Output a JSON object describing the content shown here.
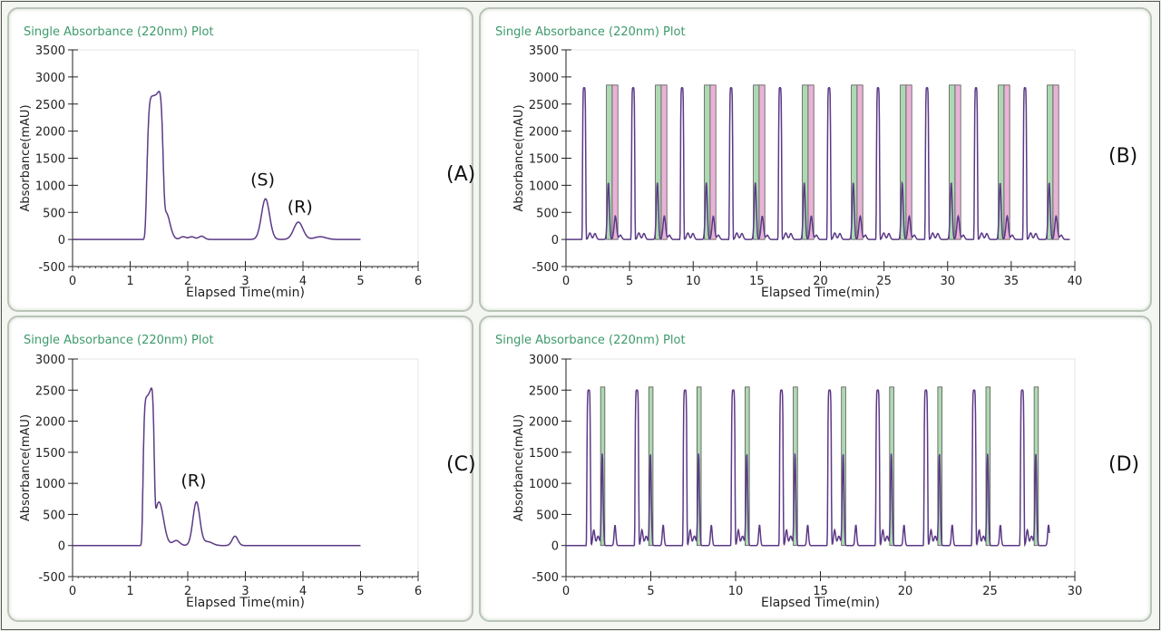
{
  "chart_data": [
    {
      "id": "A",
      "type": "line",
      "title": "Single Absorbance (220nm) Plot",
      "xlabel": "Elapsed Time(min)",
      "ylabel": "Absorbance(mAU)",
      "panel_label": "(A)",
      "xlim": [
        0,
        6
      ],
      "ylim": [
        -500,
        3500
      ],
      "xticks": [
        0,
        1,
        2,
        3,
        4,
        5,
        6
      ],
      "yticks": [
        -500,
        0,
        500,
        1000,
        1500,
        2000,
        2500,
        3000,
        3500
      ],
      "x_range": [
        0,
        5
      ],
      "peaks": [
        {
          "t": 1.43,
          "h": 2650,
          "w": 0.13,
          "flat": true
        },
        {
          "t": 1.62,
          "h": 500,
          "w": 0.07
        },
        {
          "t": 1.92,
          "h": 50,
          "w": 0.05
        },
        {
          "t": 2.07,
          "h": 50,
          "w": 0.05
        },
        {
          "t": 2.24,
          "h": 60,
          "w": 0.05
        },
        {
          "t": 3.35,
          "h": 750,
          "w": 0.07
        },
        {
          "t": 3.92,
          "h": 320,
          "w": 0.08
        },
        {
          "t": 4.3,
          "h": 50,
          "w": 0.1
        }
      ],
      "annotations": [
        {
          "text": "(S)",
          "x": 3.3,
          "y": 1000
        },
        {
          "text": "(R)",
          "x": 3.95,
          "y": 500
        }
      ],
      "fractions": []
    },
    {
      "id": "B",
      "type": "line",
      "title": "Single Absorbance (220nm) Plot",
      "xlabel": "Elapsed Time(min)",
      "ylabel": "Absorbance(mAU)",
      "panel_label": "(B)",
      "xlim": [
        0,
        40
      ],
      "ylim": [
        -500,
        3500
      ],
      "xticks": [
        0,
        5,
        10,
        15,
        20,
        25,
        30,
        35,
        40
      ],
      "yticks": [
        -500,
        0,
        500,
        1000,
        1500,
        2000,
        2500,
        3000,
        3500
      ],
      "x_range": [
        0,
        39.6
      ],
      "cycle_start": 1.43,
      "cycle_period": 3.85,
      "cycles": 10,
      "cycle_peaks": [
        {
          "dt": 0,
          "h": 2800,
          "w": 0.12,
          "flat": true
        },
        {
          "dt": 0.45,
          "h": 120,
          "w": 0.1
        },
        {
          "dt": 0.85,
          "h": 110,
          "w": 0.1
        },
        {
          "dt": 1.9,
          "h": 1050,
          "w": 0.08
        },
        {
          "dt": 2.45,
          "h": 430,
          "w": 0.1
        },
        {
          "dt": 2.85,
          "h": 80,
          "w": 0.1
        }
      ],
      "cycle_fractions": [
        {
          "start": 1.75,
          "end": 2.2,
          "color": "#9fd2a5"
        },
        {
          "start": 2.2,
          "end": 2.65,
          "color": "#e4a6cf"
        }
      ],
      "frac_top": 2850
    },
    {
      "id": "C",
      "type": "line",
      "title": "Single Absorbance (220nm) Plot",
      "xlabel": "Elapsed Time(min)",
      "ylabel": "Absorbance(mAU)",
      "panel_label": "(C)",
      "xlim": [
        0,
        6
      ],
      "ylim": [
        -500,
        3000
      ],
      "xticks": [
        0,
        1,
        2,
        3,
        4,
        5,
        6
      ],
      "yticks": [
        -500,
        0,
        500,
        1000,
        1500,
        2000,
        2500,
        3000
      ],
      "x_range": [
        0,
        5
      ],
      "peaks": [
        {
          "t": 1.32,
          "h": 2380,
          "w": 0.09,
          "flat": true
        },
        {
          "t": 1.5,
          "h": 700,
          "w": 0.08
        },
        {
          "t": 1.8,
          "h": 80,
          "w": 0.06
        },
        {
          "t": 2.15,
          "h": 700,
          "w": 0.06
        },
        {
          "t": 2.35,
          "h": 60,
          "w": 0.08
        },
        {
          "t": 2.82,
          "h": 150,
          "w": 0.05
        }
      ],
      "annotations": [
        {
          "text": "(R)",
          "x": 2.1,
          "y": 950
        }
      ],
      "fractions": []
    },
    {
      "id": "D",
      "type": "line",
      "title": "Single Absorbance (220nm) Plot",
      "xlabel": "Elapsed Time(min)",
      "ylabel": "Absorbance(mAU)",
      "panel_label": "(D)",
      "xlim": [
        0,
        30
      ],
      "ylim": [
        -500,
        3000
      ],
      "xticks": [
        0,
        5,
        10,
        15,
        20,
        25,
        30
      ],
      "yticks": [
        -500,
        0,
        500,
        1000,
        1500,
        2000,
        2500,
        3000
      ],
      "x_range": [
        0,
        28.5
      ],
      "cycle_start": 1.34,
      "cycle_period": 2.84,
      "cycles": 10,
      "cycle_peaks": [
        {
          "dt": 0,
          "h": 2500,
          "w": 0.1,
          "flat": true
        },
        {
          "dt": 0.3,
          "h": 250,
          "w": 0.06
        },
        {
          "dt": 0.55,
          "h": 150,
          "w": 0.08
        },
        {
          "dt": 0.8,
          "h": 1480,
          "w": 0.05
        },
        {
          "dt": 1.55,
          "h": 330,
          "w": 0.05
        }
      ],
      "cycle_fractions": [
        {
          "start": 0.7,
          "end": 0.95,
          "color": "#9fd2a5"
        }
      ],
      "frac_top": 2550
    }
  ]
}
